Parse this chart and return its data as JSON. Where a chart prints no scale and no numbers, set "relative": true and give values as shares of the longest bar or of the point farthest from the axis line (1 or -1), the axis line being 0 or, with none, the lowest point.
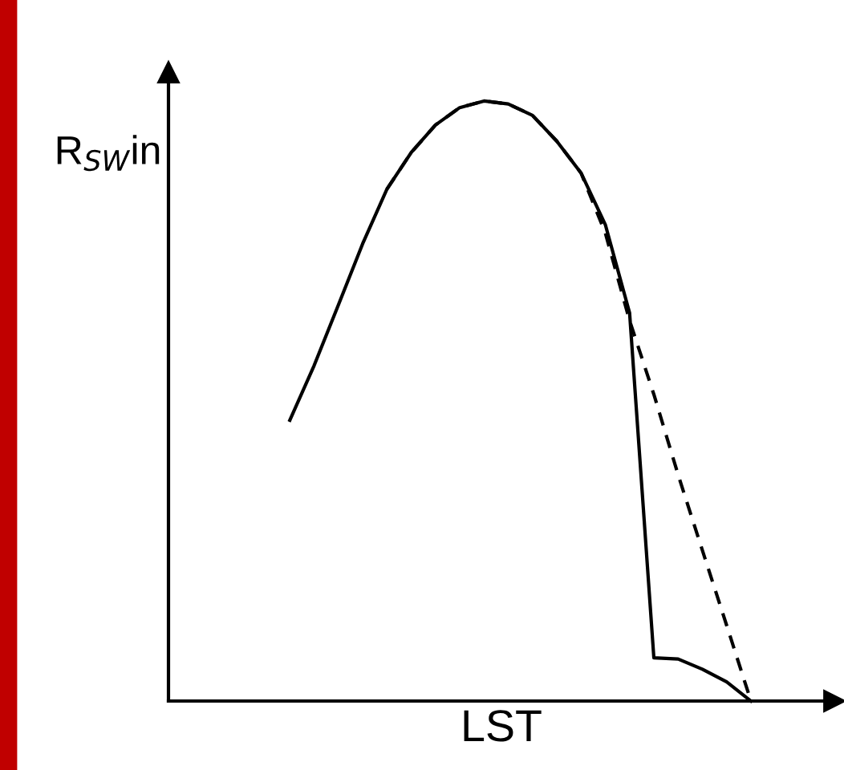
{
  "chart_data": {
    "type": "line",
    "relative": true,
    "xlabel": "LST",
    "ylabel": "R$_{SW}$in",
    "marker": "none",
    "categories": [
      null,
      null,
      null,
      null,
      null,
      null,
      null,
      null,
      null,
      null,
      null,
      null,
      null,
      null,
      null,
      null,
      null,
      null,
      null,
      null,
      null,
      null,
      null,
      null,
      null
    ],
    "series": [
      {
        "color": "#000000",
        "line_style": "solid",
        "values": [
          null,
          null,
          null,
          null,
          null,
          0.468,
          0.559,
          0.66,
          0.762,
          0.853,
          0.914,
          0.96,
          0.989,
          1.0,
          0.995,
          0.976,
          0.933,
          0.88,
          0.794,
          0.647,
          0.072,
          0.07,
          0.053,
          0.032,
          0.0
        ]
      },
      {
        "color": "#000000",
        "line_style": "dashed",
        "values": [
          null,
          null,
          null,
          null,
          null,
          null,
          null,
          null,
          null,
          0.853,
          0.914,
          0.96,
          0.989,
          1.0,
          0.995,
          0.976,
          0.933,
          0.88,
          0.78,
          0.634,
          0.511,
          0.377,
          0.251,
          0.126,
          0.0
        ]
      }
    ]
  }
}
